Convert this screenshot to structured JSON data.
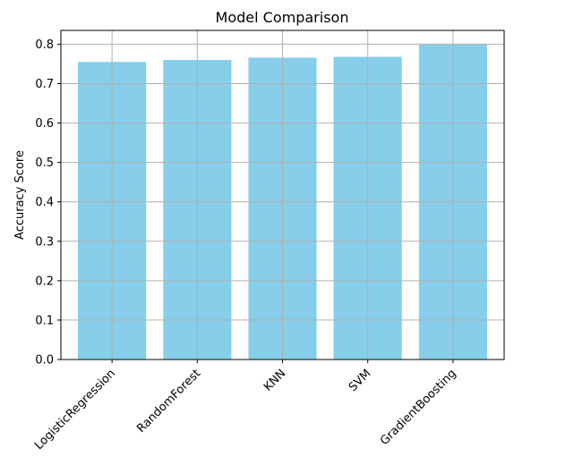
{
  "chart_data": {
    "type": "bar",
    "title": "Model Comparison",
    "xlabel": "",
    "ylabel": "Accuracy Score",
    "categories": [
      "LogisticRegression",
      "RandomForest",
      "KNN",
      "SVM",
      "GradientBoosting"
    ],
    "values": [
      0.755,
      0.76,
      0.766,
      0.768,
      0.8
    ],
    "ylim": [
      0,
      0.835
    ],
    "yticks": [
      0.0,
      0.1,
      0.2,
      0.3,
      0.4,
      0.5,
      0.6,
      0.7,
      0.8
    ],
    "ytick_labels": [
      "0.0",
      "0.1",
      "0.2",
      "0.3",
      "0.4",
      "0.5",
      "0.6",
      "0.7",
      "0.8"
    ],
    "grid": true,
    "bar_color": "#87ceeb",
    "xtick_rotation_deg": 45
  }
}
